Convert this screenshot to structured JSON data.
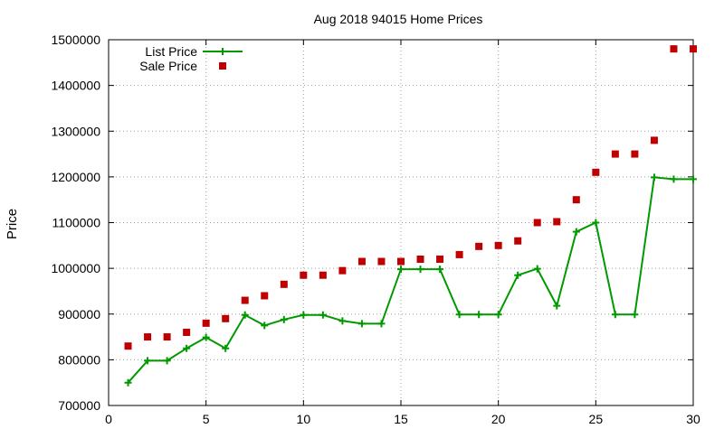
{
  "chart_data": {
    "type": "line",
    "title": "Aug 2018 94015 Home Prices",
    "xlabel": "",
    "ylabel": "Price",
    "xlim": [
      0,
      30
    ],
    "ylim": [
      700000,
      1500000
    ],
    "xticks": [
      0,
      5,
      10,
      15,
      20,
      25,
      30
    ],
    "yticks": [
      700000,
      800000,
      900000,
      1000000,
      1100000,
      1200000,
      1300000,
      1400000,
      1500000
    ],
    "grid": true,
    "legend_position": "top-left",
    "series": [
      {
        "name": "List Price",
        "style": "line-with-plus-markers",
        "color": "#009900",
        "x": [
          1,
          2,
          3,
          4,
          5,
          6,
          7,
          8,
          9,
          10,
          11,
          12,
          13,
          14,
          15,
          16,
          17,
          18,
          19,
          20,
          21,
          22,
          23,
          24,
          25,
          26,
          27,
          28,
          29,
          30
        ],
        "values": [
          750000,
          798000,
          798000,
          825000,
          849000,
          825000,
          898000,
          875000,
          888000,
          898000,
          898000,
          885000,
          879000,
          879000,
          998000,
          998000,
          998000,
          899000,
          899000,
          899000,
          985000,
          999000,
          918000,
          1080000,
          1100000,
          899000,
          899000,
          1199000,
          1195000,
          1195000
        ]
      },
      {
        "name": "Sale Price",
        "style": "square-markers",
        "color": "#c00000",
        "x": [
          1,
          2,
          3,
          4,
          5,
          6,
          7,
          8,
          9,
          10,
          11,
          12,
          13,
          14,
          15,
          16,
          17,
          18,
          19,
          20,
          21,
          22,
          23,
          24,
          25,
          26,
          27,
          28,
          29,
          30
        ],
        "values": [
          830000,
          850000,
          850000,
          860000,
          880000,
          890000,
          930000,
          940000,
          965000,
          985000,
          985000,
          995000,
          1015000,
          1015000,
          1015000,
          1020000,
          1020000,
          1030000,
          1048000,
          1050000,
          1060000,
          1100000,
          1102000,
          1150000,
          1210000,
          1250000,
          1250000,
          1280000,
          1480000,
          1480000
        ]
      }
    ]
  }
}
